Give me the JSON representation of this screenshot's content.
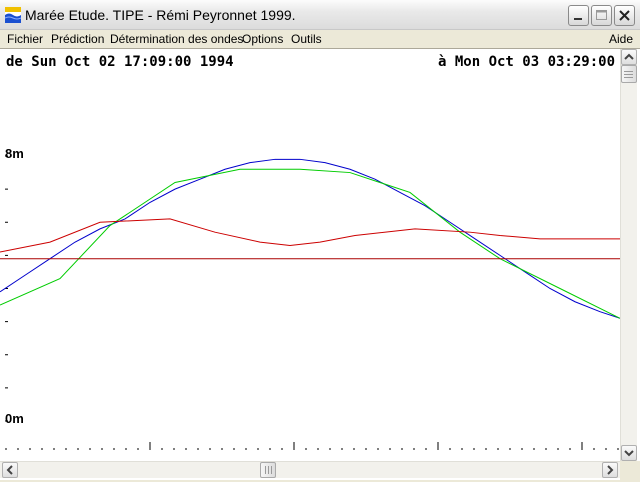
{
  "window": {
    "title": "Marée Etude. TIPE - Rémi Peyronnet 1999.",
    "icon": "tide-app-icon"
  },
  "menu": {
    "items": [
      "Fichier",
      "Prédiction",
      "Détermination des ondes",
      "Options",
      "Outils"
    ],
    "help": "Aide"
  },
  "header": {
    "start_label": "de Sun Oct 02 17:09:00 1994",
    "end_label": "à  Mon Oct 03 03:29:00 1994"
  },
  "chart_data": {
    "type": "line",
    "ylim": [
      0,
      8
    ],
    "ytick_labels": [
      "8m",
      "0m"
    ],
    "colors": {
      "blue": "#0000cc",
      "green": "#00cc00",
      "red": "#cc0000",
      "baseline": "#aa0000"
    },
    "series": [
      {
        "values": [
          [
            0,
            3.9
          ],
          [
            25,
            4.4
          ],
          [
            50,
            4.9
          ],
          [
            75,
            5.4
          ],
          [
            100,
            5.8
          ],
          [
            125,
            6.1
          ],
          [
            150,
            6.6
          ],
          [
            175,
            7.0
          ],
          [
            200,
            7.3
          ],
          [
            225,
            7.6
          ],
          [
            250,
            7.8
          ],
          [
            275,
            7.9
          ],
          [
            300,
            7.9
          ],
          [
            325,
            7.8
          ],
          [
            350,
            7.6
          ],
          [
            375,
            7.3
          ],
          [
            400,
            6.9
          ],
          [
            425,
            6.5
          ],
          [
            450,
            6.0
          ],
          [
            475,
            5.5
          ],
          [
            500,
            5.0
          ],
          [
            525,
            4.5
          ],
          [
            550,
            4.0
          ],
          [
            575,
            3.6
          ],
          [
            600,
            3.3
          ],
          [
            620,
            3.1
          ]
        ]
      },
      {
        "values": [
          [
            0,
            3.5
          ],
          [
            60,
            4.3
          ],
          [
            110,
            5.9
          ],
          [
            175,
            7.2
          ],
          [
            240,
            7.6
          ],
          [
            300,
            7.6
          ],
          [
            350,
            7.5
          ],
          [
            410,
            6.9
          ],
          [
            460,
            5.7
          ],
          [
            500,
            4.9
          ],
          [
            560,
            4.0
          ],
          [
            620,
            3.1
          ]
        ]
      },
      {
        "values": [
          [
            0,
            5.1
          ],
          [
            50,
            5.4
          ],
          [
            100,
            6.0
          ],
          [
            170,
            6.1
          ],
          [
            215,
            5.7
          ],
          [
            260,
            5.4
          ],
          [
            290,
            5.3
          ],
          [
            320,
            5.4
          ],
          [
            355,
            5.6
          ],
          [
            415,
            5.8
          ],
          [
            470,
            5.7
          ],
          [
            500,
            5.6
          ],
          [
            540,
            5.5
          ],
          [
            580,
            5.5
          ],
          [
            620,
            5.5
          ]
        ]
      },
      {
        "values": [
          [
            0,
            4.9
          ],
          [
            620,
            4.9
          ]
        ]
      }
    ]
  }
}
